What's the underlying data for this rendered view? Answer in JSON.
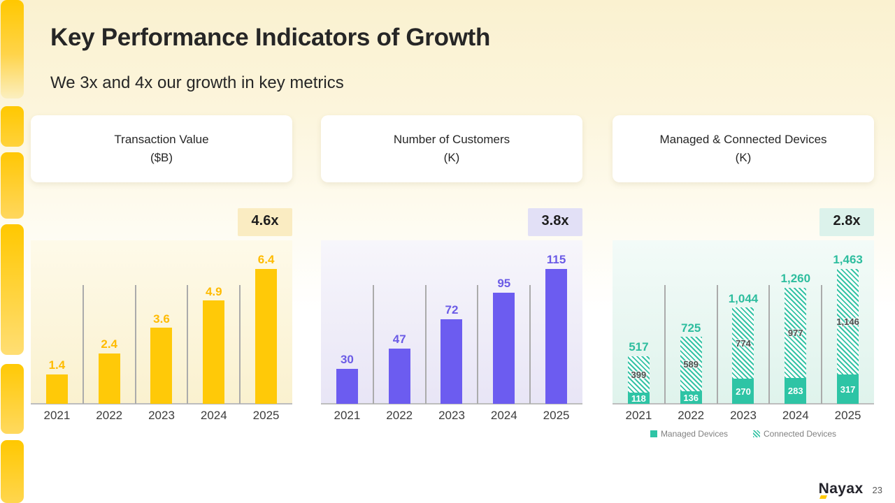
{
  "slide": {
    "title": "Key Performance Indicators of Growth",
    "subtitle": "We 3x and 4x our growth in key metrics",
    "brand": "Nayax",
    "page_number": "23"
  },
  "colors": {
    "accent_yellow": "#FFC800",
    "bar_yellow": "#FFC908",
    "bar_purple": "#6C5CF0",
    "bar_teal": "#2EC4A5",
    "axis_gray": "#ABABAB"
  },
  "chart_data": [
    {
      "type": "bar",
      "panel_title": "Transaction Value",
      "panel_unit": "($B)",
      "growth_multiple": "4.6x",
      "categories": [
        "2021",
        "2022",
        "2023",
        "2024",
        "2025"
      ],
      "values": [
        1.4,
        2.4,
        3.6,
        4.9,
        6.4
      ],
      "value_labels": [
        "1.4",
        "2.4",
        "3.6",
        "4.9",
        "6.4"
      ],
      "ylim": [
        0,
        6.4
      ],
      "grid": "category-separators",
      "legend_position": "none",
      "bar_color": "#FFC908",
      "value_label_color": "#FFBB00",
      "panel_tint_top": "#FEFAE9",
      "panel_tint_bottom": "#FAF1CF",
      "badge_bg": "#FAECC2"
    },
    {
      "type": "bar",
      "panel_title": "Number of Customers",
      "panel_unit": "(K)",
      "growth_multiple": "3.8x",
      "categories": [
        "2021",
        "2022",
        "2023",
        "2024",
        "2025"
      ],
      "values": [
        30,
        47,
        72,
        95,
        115
      ],
      "value_labels": [
        "30",
        "47",
        "72",
        "95",
        "115"
      ],
      "ylim": [
        0,
        115
      ],
      "grid": "category-separators",
      "legend_position": "none",
      "bar_color": "#6C5CF0",
      "value_label_color": "#6B5BE6",
      "panel_tint_top": "#F7F6FB",
      "panel_tint_bottom": "#E8E5F6",
      "badge_bg": "#E2E0F6"
    },
    {
      "type": "stacked-bar",
      "panel_title": "Managed & Connected Devices",
      "panel_unit": "(K)",
      "growth_multiple": "2.8x",
      "categories": [
        "2021",
        "2022",
        "2023",
        "2024",
        "2025"
      ],
      "series": [
        {
          "name": "Managed Devices",
          "pattern": "solid",
          "values": [
            118,
            136,
            270,
            283,
            317
          ],
          "labels": [
            "118",
            "136",
            "270",
            "283",
            "317"
          ],
          "label_color": "#FFFFFF"
        },
        {
          "name": "Connected Devices",
          "pattern": "diagonal-hatch",
          "values": [
            399,
            589,
            774,
            977,
            1146
          ],
          "labels": [
            "399",
            "589",
            "774",
            "977",
            "1,146"
          ],
          "label_color": "#4D4D4D"
        }
      ],
      "totals": [
        "517",
        "725",
        "1,044",
        "1,260",
        "1,463"
      ],
      "ylim": [
        0,
        1463
      ],
      "grid": "category-separators",
      "legend_position": "bottom",
      "bar_color": "#2EC4A5",
      "value_label_color": "#2DBD9E",
      "panel_tint_top": "#F3FBF8",
      "panel_tint_bottom": "#DFF3EC",
      "badge_bg": "#DCF2EB"
    }
  ]
}
